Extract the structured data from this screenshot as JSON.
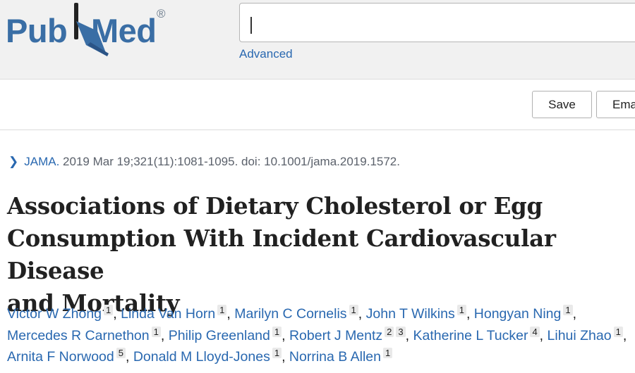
{
  "brand": {
    "part1": "Pub",
    "part2": "Med",
    "registered": "®",
    "colors": {
      "brand_blue": "#3a6ea5",
      "link_blue": "#2968b0"
    }
  },
  "search": {
    "value": "",
    "advanced_label": "Advanced"
  },
  "actions": {
    "save_label": "Save",
    "email_label": "Email"
  },
  "citation": {
    "journal": "JAMA.",
    "details": "2019 Mar 19;321(11):1081-1095. doi: 10.1001/jama.2019.1572."
  },
  "article": {
    "title_lines": [
      "Associations of Dietary Cholesterol or Egg",
      "Consumption With Incident Cardiovascular Disease",
      "and Mortality"
    ]
  },
  "authors": [
    {
      "name": "Victor W Zhong",
      "affiliations": [
        "1"
      ]
    },
    {
      "name": "Linda Van Horn",
      "affiliations": [
        "1"
      ]
    },
    {
      "name": "Marilyn C Cornelis",
      "affiliations": [
        "1"
      ]
    },
    {
      "name": "John T Wilkins",
      "affiliations": [
        "1"
      ]
    },
    {
      "name": "Hongyan Ning",
      "affiliations": [
        "1"
      ]
    },
    {
      "name": "Mercedes R Carnethon",
      "affiliations": [
        "1"
      ]
    },
    {
      "name": "Philip Greenland",
      "affiliations": [
        "1"
      ]
    },
    {
      "name": "Robert J Mentz",
      "affiliations": [
        "2",
        "3"
      ]
    },
    {
      "name": "Katherine L Tucker",
      "affiliations": [
        "4"
      ]
    },
    {
      "name": "Lihui Zhao",
      "affiliations": [
        "1"
      ]
    },
    {
      "name": "Arnita F Norwood",
      "affiliations": [
        "5"
      ]
    },
    {
      "name": "Donald M Lloyd-Jones",
      "affiliations": [
        "1"
      ]
    },
    {
      "name": "Norrina B Allen",
      "affiliations": [
        "1"
      ]
    }
  ]
}
